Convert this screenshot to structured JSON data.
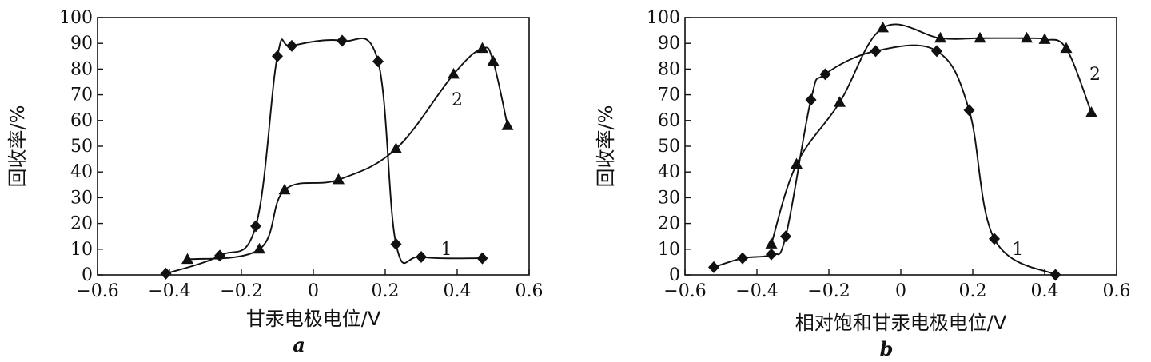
{
  "chart_data": [
    {
      "type": "line",
      "sublabel": "a",
      "xlabel": "甘汞电极电位/V",
      "ylabel": "回收率/%",
      "xlim": [
        -0.6,
        0.6
      ],
      "ylim": [
        0,
        100
      ],
      "xticks": [
        "−0.6",
        "−0.4",
        "−0.2",
        "0",
        "0.2",
        "0.4",
        "0.6"
      ],
      "xtick_values": [
        -0.6,
        -0.4,
        -0.2,
        0,
        0.2,
        0.4,
        0.6
      ],
      "yticks": [
        "0",
        "10",
        "20",
        "30",
        "40",
        "50",
        "60",
        "70",
        "80",
        "90",
        "100"
      ],
      "ytick_values": [
        0,
        10,
        20,
        30,
        40,
        50,
        60,
        70,
        80,
        90,
        100
      ],
      "grid": false,
      "series": [
        {
          "name": "1",
          "marker": "diamond",
          "points": [
            [
              -0.41,
              0.5
            ],
            [
              -0.26,
              7.5
            ],
            [
              -0.16,
              19
            ],
            [
              -0.1,
              85
            ],
            [
              -0.06,
              89
            ],
            [
              0.08,
              91
            ],
            [
              0.18,
              83
            ],
            [
              0.23,
              12
            ],
            [
              0.3,
              7
            ],
            [
              0.47,
              6.5
            ]
          ]
        },
        {
          "name": "2",
          "marker": "triangle",
          "points": [
            [
              -0.35,
              6
            ],
            [
              -0.15,
              10
            ],
            [
              -0.08,
              33
            ],
            [
              0.07,
              37
            ],
            [
              0.23,
              49
            ],
            [
              0.39,
              78
            ],
            [
              0.47,
              88
            ],
            [
              0.5,
              83
            ],
            [
              0.54,
              58
            ]
          ]
        }
      ],
      "curve_labels": [
        {
          "text": "1",
          "x": 0.37,
          "y": 10
        },
        {
          "text": "2",
          "x": 0.4,
          "y": 68
        }
      ]
    },
    {
      "type": "line",
      "sublabel": "b",
      "xlabel": "相对饱和甘汞电极电位/V",
      "ylabel": "回收率/%",
      "xlim": [
        -0.6,
        0.6
      ],
      "ylim": [
        0,
        100
      ],
      "xticks": [
        "−0.6",
        "−0.4",
        "−0.2",
        "0",
        "0.2",
        "0.4",
        "0.6"
      ],
      "xtick_values": [
        -0.6,
        -0.4,
        -0.2,
        0,
        0.2,
        0.4,
        0.6
      ],
      "yticks": [
        "0",
        "10",
        "20",
        "30",
        "40",
        "50",
        "60",
        "70",
        "80",
        "90",
        "100"
      ],
      "ytick_values": [
        0,
        10,
        20,
        30,
        40,
        50,
        60,
        70,
        80,
        90,
        100
      ],
      "grid": false,
      "series": [
        {
          "name": "1",
          "marker": "diamond",
          "points": [
            [
              -0.52,
              3
            ],
            [
              -0.44,
              6.5
            ],
            [
              -0.36,
              8
            ],
            [
              -0.32,
              15
            ],
            [
              -0.25,
              68
            ],
            [
              -0.21,
              78
            ],
            [
              -0.07,
              87
            ],
            [
              0.1,
              87
            ],
            [
              0.19,
              64
            ],
            [
              0.26,
              14
            ],
            [
              0.43,
              0
            ]
          ]
        },
        {
          "name": "2",
          "marker": "triangle",
          "points": [
            [
              -0.36,
              12
            ],
            [
              -0.29,
              43
            ],
            [
              -0.17,
              67
            ],
            [
              -0.05,
              96
            ],
            [
              0.11,
              92
            ],
            [
              0.22,
              92
            ],
            [
              0.35,
              92
            ],
            [
              0.4,
              91.5
            ],
            [
              0.46,
              88
            ],
            [
              0.53,
              63
            ]
          ]
        }
      ],
      "curve_labels": [
        {
          "text": "1",
          "x": 0.325,
          "y": 10
        },
        {
          "text": "2",
          "x": 0.54,
          "y": 78
        }
      ]
    }
  ]
}
